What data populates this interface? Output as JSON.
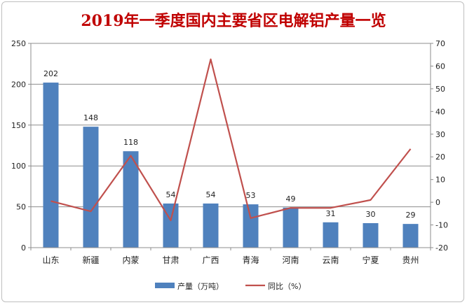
{
  "chart_data": {
    "type": "bar",
    "title": "2019年一季度国内主要省区电解铝产量一览",
    "categories": [
      "山东",
      "新疆",
      "内蒙",
      "甘肃",
      "广西",
      "青海",
      "河南",
      "云南",
      "宁夏",
      "贵州"
    ],
    "series": [
      {
        "name": "产量（万吨）",
        "type": "bar",
        "axis": "left",
        "color": "#4f81bd",
        "values": [
          202,
          148,
          118,
          54,
          54,
          53,
          49,
          31,
          30,
          29
        ]
      },
      {
        "name": "同比（%）",
        "type": "line",
        "axis": "right",
        "color": "#c0504d",
        "values": [
          0.5,
          -4,
          20.5,
          -8,
          63,
          -7,
          -2.5,
          -2.5,
          1,
          23.5
        ]
      }
    ],
    "y_left": {
      "min": 0,
      "max": 250,
      "ticks": [
        0,
        50,
        100,
        150,
        200,
        250
      ]
    },
    "y_right": {
      "min": -20,
      "max": 70,
      "ticks": [
        -20,
        -10,
        0,
        10,
        20,
        30,
        40,
        50,
        60,
        70
      ]
    },
    "grid": true,
    "legend_position": "bottom"
  }
}
